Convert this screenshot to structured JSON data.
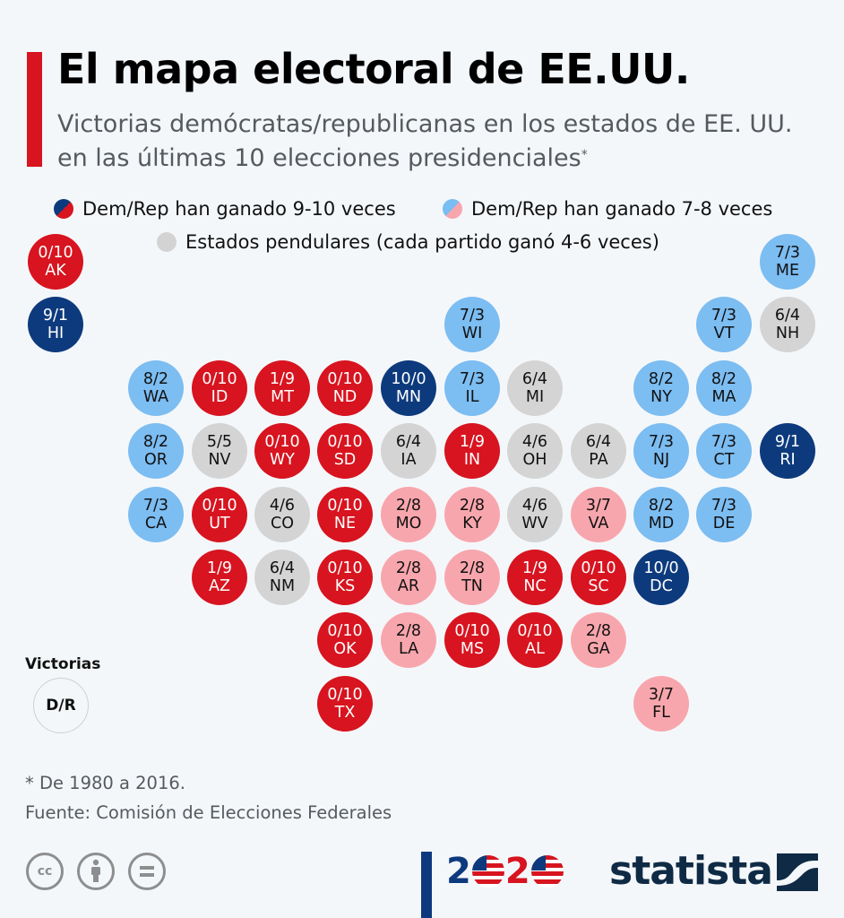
{
  "header": {
    "title": "El mapa electoral de EE.UU.",
    "subtitle": "Victorias demócratas/republicanas en los estados de EE. UU. en las últimas 10 elecciones presidenciales",
    "subtitle_footnote_mark": "*"
  },
  "legend": {
    "strong": "Dem/Rep han ganado 9-10 veces",
    "light": "Dem/Rep han ganado 7-8 veces",
    "swing": "Estados pendulares (cada partido ganó 4-6 veces)"
  },
  "colors": {
    "dem_strong": "#0d3a7d",
    "rep_strong": "#d7141f",
    "dem_light": "#7cbdf2",
    "rep_light": "#f8a6ad",
    "swing": "#d4d4d4",
    "accent": "#d7141f"
  },
  "key": {
    "label": "Victorias",
    "format": "D/R"
  },
  "states": [
    {
      "abbr": "AK",
      "wins": "0/10",
      "category": "rep_strong",
      "col": 0,
      "row": 0
    },
    {
      "abbr": "ME",
      "wins": "7/3",
      "category": "dem_light",
      "col": 11,
      "row": 0
    },
    {
      "abbr": "HI",
      "wins": "9/1",
      "category": "dem_strong",
      "col": 0,
      "row": 1
    },
    {
      "abbr": "WI",
      "wins": "7/3",
      "category": "dem_light",
      "col": 6,
      "row": 1
    },
    {
      "abbr": "VT",
      "wins": "7/3",
      "category": "dem_light",
      "col": 10,
      "row": 1
    },
    {
      "abbr": "NH",
      "wins": "6/4",
      "category": "swing",
      "col": 11,
      "row": 1
    },
    {
      "abbr": "WA",
      "wins": "8/2",
      "category": "dem_light",
      "col": 1,
      "row": 2
    },
    {
      "abbr": "ID",
      "wins": "0/10",
      "category": "rep_strong",
      "col": 2,
      "row": 2
    },
    {
      "abbr": "MT",
      "wins": "1/9",
      "category": "rep_strong",
      "col": 3,
      "row": 2
    },
    {
      "abbr": "ND",
      "wins": "0/10",
      "category": "rep_strong",
      "col": 4,
      "row": 2
    },
    {
      "abbr": "MN",
      "wins": "10/0",
      "category": "dem_strong",
      "col": 5,
      "row": 2
    },
    {
      "abbr": "IL",
      "wins": "7/3",
      "category": "dem_light",
      "col": 6,
      "row": 2
    },
    {
      "abbr": "MI",
      "wins": "6/4",
      "category": "swing",
      "col": 7,
      "row": 2
    },
    {
      "abbr": "NY",
      "wins": "8/2",
      "category": "dem_light",
      "col": 9,
      "row": 2
    },
    {
      "abbr": "MA",
      "wins": "8/2",
      "category": "dem_light",
      "col": 10,
      "row": 2
    },
    {
      "abbr": "OR",
      "wins": "8/2",
      "category": "dem_light",
      "col": 1,
      "row": 3
    },
    {
      "abbr": "NV",
      "wins": "5/5",
      "category": "swing",
      "col": 2,
      "row": 3
    },
    {
      "abbr": "WY",
      "wins": "0/10",
      "category": "rep_strong",
      "col": 3,
      "row": 3
    },
    {
      "abbr": "SD",
      "wins": "0/10",
      "category": "rep_strong",
      "col": 4,
      "row": 3
    },
    {
      "abbr": "IA",
      "wins": "6/4",
      "category": "swing",
      "col": 5,
      "row": 3
    },
    {
      "abbr": "IN",
      "wins": "1/9",
      "category": "rep_strong",
      "col": 6,
      "row": 3
    },
    {
      "abbr": "OH",
      "wins": "4/6",
      "category": "swing",
      "col": 7,
      "row": 3
    },
    {
      "abbr": "PA",
      "wins": "6/4",
      "category": "swing",
      "col": 8,
      "row": 3
    },
    {
      "abbr": "NJ",
      "wins": "7/3",
      "category": "dem_light",
      "col": 9,
      "row": 3
    },
    {
      "abbr": "CT",
      "wins": "7/3",
      "category": "dem_light",
      "col": 10,
      "row": 3
    },
    {
      "abbr": "RI",
      "wins": "9/1",
      "category": "dem_strong",
      "col": 11,
      "row": 3
    },
    {
      "abbr": "CA",
      "wins": "7/3",
      "category": "dem_light",
      "col": 1,
      "row": 4
    },
    {
      "abbr": "UT",
      "wins": "0/10",
      "category": "rep_strong",
      "col": 2,
      "row": 4
    },
    {
      "abbr": "CO",
      "wins": "4/6",
      "category": "swing",
      "col": 3,
      "row": 4
    },
    {
      "abbr": "NE",
      "wins": "0/10",
      "category": "rep_strong",
      "col": 4,
      "row": 4
    },
    {
      "abbr": "MO",
      "wins": "2/8",
      "category": "rep_light",
      "col": 5,
      "row": 4
    },
    {
      "abbr": "KY",
      "wins": "2/8",
      "category": "rep_light",
      "col": 6,
      "row": 4
    },
    {
      "abbr": "WV",
      "wins": "4/6",
      "category": "swing",
      "col": 7,
      "row": 4
    },
    {
      "abbr": "VA",
      "wins": "3/7",
      "category": "rep_light",
      "col": 8,
      "row": 4
    },
    {
      "abbr": "MD",
      "wins": "8/2",
      "category": "dem_light",
      "col": 9,
      "row": 4
    },
    {
      "abbr": "DE",
      "wins": "7/3",
      "category": "dem_light",
      "col": 10,
      "row": 4
    },
    {
      "abbr": "AZ",
      "wins": "1/9",
      "category": "rep_strong",
      "col": 2,
      "row": 5
    },
    {
      "abbr": "NM",
      "wins": "6/4",
      "category": "swing",
      "col": 3,
      "row": 5
    },
    {
      "abbr": "KS",
      "wins": "0/10",
      "category": "rep_strong",
      "col": 4,
      "row": 5
    },
    {
      "abbr": "AR",
      "wins": "2/8",
      "category": "rep_light",
      "col": 5,
      "row": 5
    },
    {
      "abbr": "TN",
      "wins": "2/8",
      "category": "rep_light",
      "col": 6,
      "row": 5
    },
    {
      "abbr": "NC",
      "wins": "1/9",
      "category": "rep_strong",
      "col": 7,
      "row": 5
    },
    {
      "abbr": "SC",
      "wins": "0/10",
      "category": "rep_strong",
      "col": 8,
      "row": 5
    },
    {
      "abbr": "DC",
      "wins": "10/0",
      "category": "dem_strong",
      "col": 9,
      "row": 5
    },
    {
      "abbr": "OK",
      "wins": "0/10",
      "category": "rep_strong",
      "col": 4,
      "row": 6
    },
    {
      "abbr": "LA",
      "wins": "2/8",
      "category": "rep_light",
      "col": 5,
      "row": 6
    },
    {
      "abbr": "MS",
      "wins": "0/10",
      "category": "rep_strong",
      "col": 6,
      "row": 6
    },
    {
      "abbr": "AL",
      "wins": "0/10",
      "category": "rep_strong",
      "col": 7,
      "row": 6
    },
    {
      "abbr": "GA",
      "wins": "2/8",
      "category": "rep_light",
      "col": 8,
      "row": 6
    },
    {
      "abbr": "TX",
      "wins": "0/10",
      "category": "rep_strong",
      "col": 4,
      "row": 7
    },
    {
      "abbr": "FL",
      "wins": "3/7",
      "category": "rep_light",
      "col": 9,
      "row": 7
    }
  ],
  "footer": {
    "note": "* De 1980 a 2016.",
    "source": "Fuente: Comisión de Elecciones Federales",
    "license_icons": [
      "cc-icon",
      "attribution-icon",
      "no-derivatives-icon"
    ],
    "cc_text": "cc",
    "logo_2020_digits": [
      "2",
      "2"
    ],
    "brand": "statista"
  }
}
